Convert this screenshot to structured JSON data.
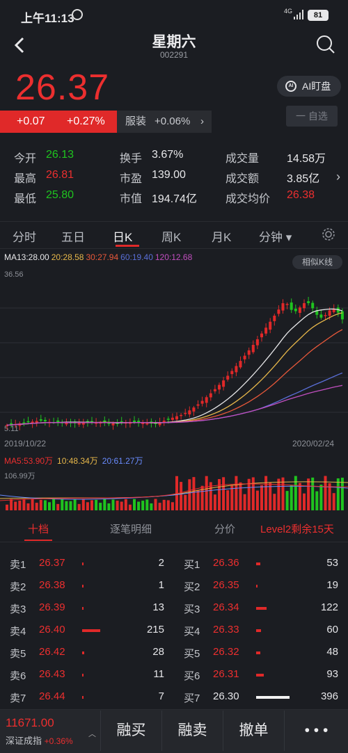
{
  "status_bar": {
    "time": "上午11:13",
    "network": "4G",
    "battery": "81"
  },
  "header": {
    "title": "星期六",
    "code": "002291"
  },
  "quote": {
    "price": "26.37",
    "change": "+0.07",
    "change_pct": "+0.27%",
    "industry_name": "服装",
    "industry_pct": "+0.06%",
    "ai_button": "AI盯盘",
    "watch_button": "一 自选"
  },
  "stats": [
    {
      "label": "今开",
      "value": "26.13",
      "color": "green"
    },
    {
      "label": "换手",
      "value": "3.67%",
      "color": "white"
    },
    {
      "label": "成交量",
      "value": "14.58万",
      "color": "white"
    },
    {
      "label": "最高",
      "value": "26.81",
      "color": "red"
    },
    {
      "label": "市盈",
      "value": "139.00",
      "color": "white"
    },
    {
      "label": "成交额",
      "value": "3.85亿",
      "color": "white"
    },
    {
      "label": "最低",
      "value": "25.80",
      "color": "green"
    },
    {
      "label": "市值",
      "value": "194.74亿",
      "color": "white"
    },
    {
      "label": "成交均价",
      "value": "26.38",
      "color": "red"
    }
  ],
  "tabs": [
    "分时",
    "五日",
    "日K",
    "周K",
    "月K",
    "分钟"
  ],
  "active_tab": "日K",
  "kline": {
    "ma": [
      {
        "label": "MA13:28.00",
        "color": "#e8e8ea"
      },
      {
        "label": "20:28.58",
        "color": "#e8b84a"
      },
      {
        "label": "30:27.94",
        "color": "#e8583a"
      },
      {
        "label": "60:19.40",
        "color": "#5a6fd8"
      },
      {
        "label": "120:12.68",
        "color": "#c24fc0"
      }
    ],
    "similar_button": "相似K线",
    "max_label": "36.56",
    "min_label": "5.11",
    "date_start": "2019/10/22",
    "date_end": "2020/02/24"
  },
  "volume": {
    "ma": [
      {
        "label": "MA5:53.90万",
        "color": "#ec2f2f"
      },
      {
        "label": "10:48.34万",
        "color": "#e8b84a"
      },
      {
        "label": "20:61.27万",
        "color": "#6a8cff"
      }
    ],
    "max_label": "106.99万"
  },
  "orderbook_tabs": [
    "十档",
    "逐笔明细",
    "分价",
    "Level2剩余15天"
  ],
  "asks": [
    {
      "label": "卖1",
      "price": "26.37",
      "volume": "2"
    },
    {
      "label": "卖2",
      "price": "26.38",
      "volume": "1"
    },
    {
      "label": "卖3",
      "price": "26.39",
      "volume": "13"
    },
    {
      "label": "卖4",
      "price": "26.40",
      "volume": "215"
    },
    {
      "label": "卖5",
      "price": "26.42",
      "volume": "28"
    },
    {
      "label": "卖6",
      "price": "26.43",
      "volume": "11"
    },
    {
      "label": "卖7",
      "price": "26.44",
      "volume": "7"
    }
  ],
  "bids": [
    {
      "label": "买1",
      "price": "26.36",
      "volume": "53"
    },
    {
      "label": "买2",
      "price": "26.35",
      "volume": "19"
    },
    {
      "label": "买3",
      "price": "26.34",
      "volume": "122"
    },
    {
      "label": "买4",
      "price": "26.33",
      "volume": "60"
    },
    {
      "label": "买5",
      "price": "26.32",
      "volume": "48"
    },
    {
      "label": "买6",
      "price": "26.31",
      "volume": "93"
    },
    {
      "label": "买7",
      "price": "26.30",
      "volume": "396"
    }
  ],
  "bottom": {
    "index_value": "11671.00",
    "index_name": "深证成指",
    "index_pct": "+0.36%",
    "buttons": [
      "融买",
      "融卖",
      "撤单",
      "• • •"
    ]
  }
}
